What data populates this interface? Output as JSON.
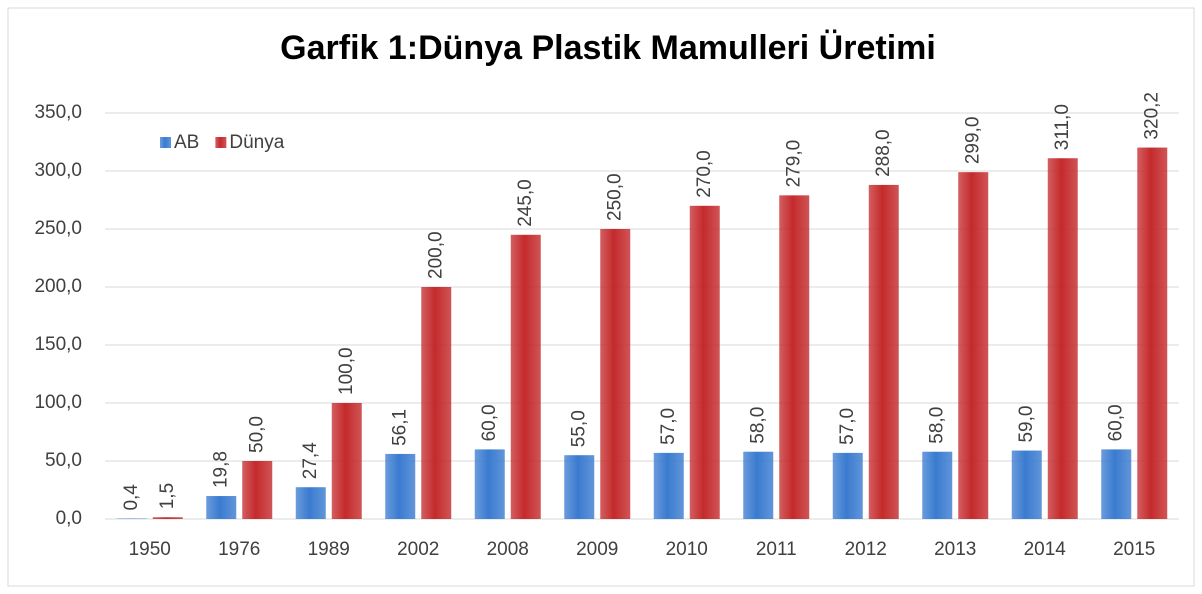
{
  "chart_data": {
    "type": "bar",
    "title": "Garfik 1:Dünya Plastik Mamulleri Üretimi",
    "categories": [
      "1950",
      "1976",
      "1989",
      "2002",
      "2008",
      "2009",
      "2010",
      "2011",
      "2012",
      "2013",
      "2014",
      "2015"
    ],
    "series": [
      {
        "name": "AB",
        "color": "#3a7bd0",
        "values": [
          0.4,
          19.8,
          27.4,
          56.1,
          60,
          55,
          57,
          58,
          57,
          58,
          59,
          60
        ],
        "value_labels": [
          "0,4",
          "19,8",
          "27,4",
          "56,1",
          "60,0",
          "55,0",
          "57,0",
          "58,0",
          "57,0",
          "58,0",
          "59,0",
          "60,0"
        ]
      },
      {
        "name": "Dünya",
        "color": "#c42a2c",
        "values": [
          1.5,
          50,
          100,
          200,
          245,
          250,
          270,
          279,
          288,
          299,
          311,
          320.2
        ],
        "value_labels": [
          "1,5",
          "50,0",
          "100,0",
          "200,0",
          "245,0",
          "250,0",
          "270,0",
          "279,0",
          "288,0",
          "299,0",
          "311,0",
          "320,2"
        ]
      }
    ],
    "ylim": [
      0,
      350
    ],
    "yticks": [
      {
        "value": 0,
        "label": "0,0"
      },
      {
        "value": 50,
        "label": "50,0"
      },
      {
        "value": 100,
        "label": "100,0"
      },
      {
        "value": 150,
        "label": "150,0"
      },
      {
        "value": 200,
        "label": "200,0"
      },
      {
        "value": 250,
        "label": "250,0"
      },
      {
        "value": 300,
        "label": "300,0"
      },
      {
        "value": 350,
        "label": "350,0"
      }
    ],
    "grid": true,
    "legend": "top-left"
  }
}
